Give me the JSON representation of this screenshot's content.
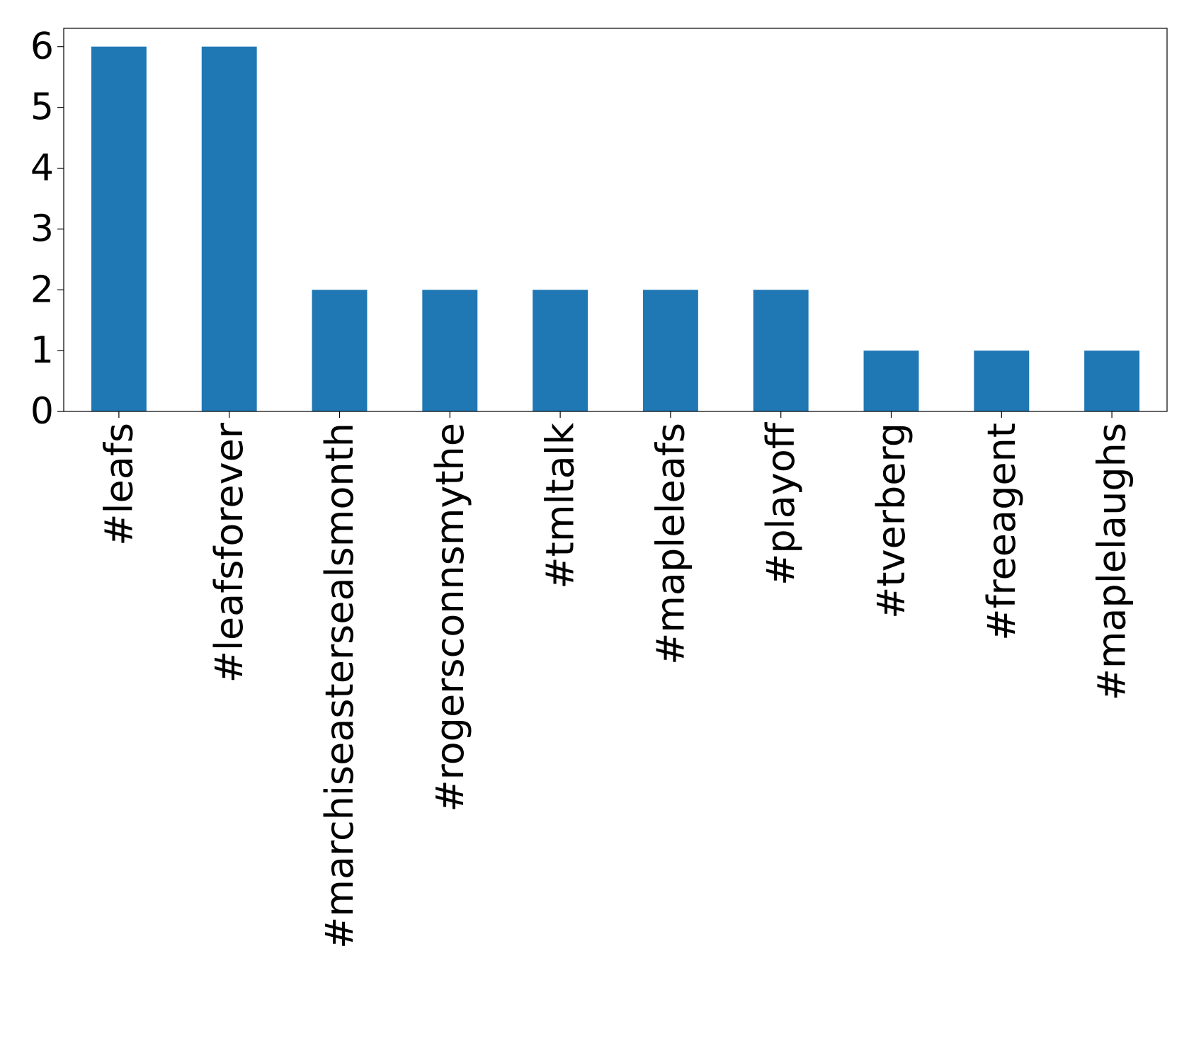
{
  "chart_data": {
    "type": "bar",
    "categories": [
      "#leafs",
      "#leafsforever",
      "#marchiseastersealsmonth",
      "#rogersconnsmythe",
      "#tmltalk",
      "#mapleleafs",
      "#playoff",
      "#tverberg",
      "#freeagent",
      "#maplelaughs"
    ],
    "values": [
      6,
      6,
      2,
      2,
      2,
      2,
      2,
      1,
      1,
      1
    ],
    "color": "#1f77b4",
    "ylim": [
      0,
      6.3
    ],
    "yticks": [
      0,
      1,
      2,
      3,
      4,
      5,
      6
    ],
    "grid": false
  }
}
